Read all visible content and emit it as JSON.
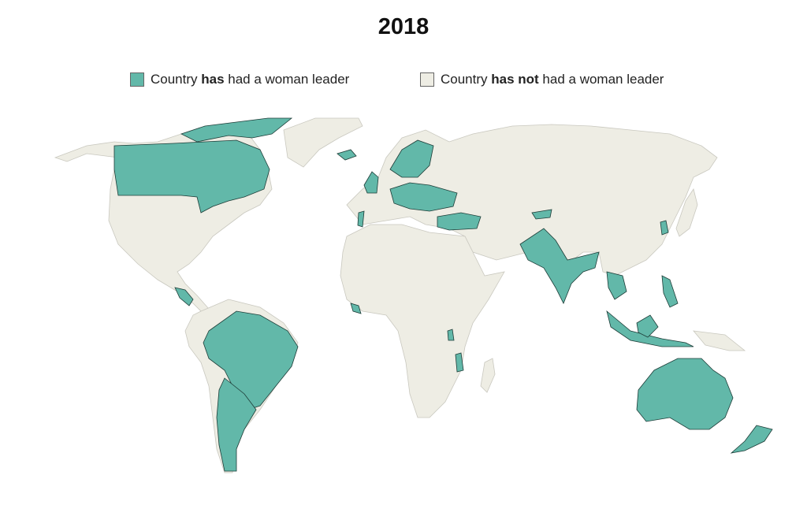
{
  "title": "2018",
  "legend": [
    {
      "parts": [
        "Country ",
        "has",
        " had a woman leader"
      ],
      "color": "#62b8a9"
    },
    {
      "parts": [
        "Country ",
        "has not",
        " had a woman leader"
      ],
      "color": "#eeede4"
    }
  ]
}
